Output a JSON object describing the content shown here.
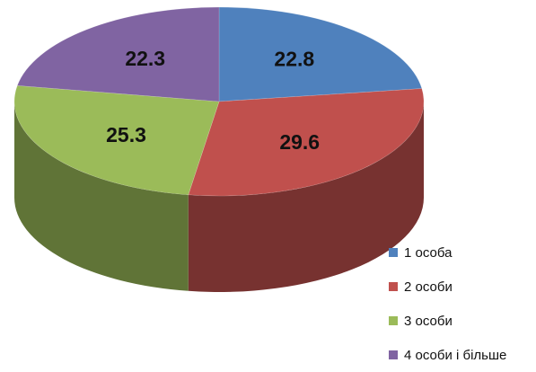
{
  "chart_data": {
    "type": "pie",
    "style": "3d",
    "categories": [
      "1 особа",
      "2 особи",
      "3 особи",
      "4 особи і більше"
    ],
    "values": [
      22.8,
      29.6,
      25.3,
      22.3
    ],
    "data_labels": [
      "22.8",
      "29.6",
      "25.3",
      "22.3"
    ],
    "colors": [
      "#4f81bd",
      "#c0504d",
      "#9bbb59",
      "#8064a2"
    ],
    "legend_position": "bottom-right"
  },
  "legend": {
    "items": [
      {
        "label": "1 особа",
        "color": "#4f81bd"
      },
      {
        "label": "2 особи",
        "color": "#c0504d"
      },
      {
        "label": "3 особи",
        "color": "#9bbb59"
      },
      {
        "label": "4 особи і більше",
        "color": "#8064a2"
      }
    ]
  }
}
